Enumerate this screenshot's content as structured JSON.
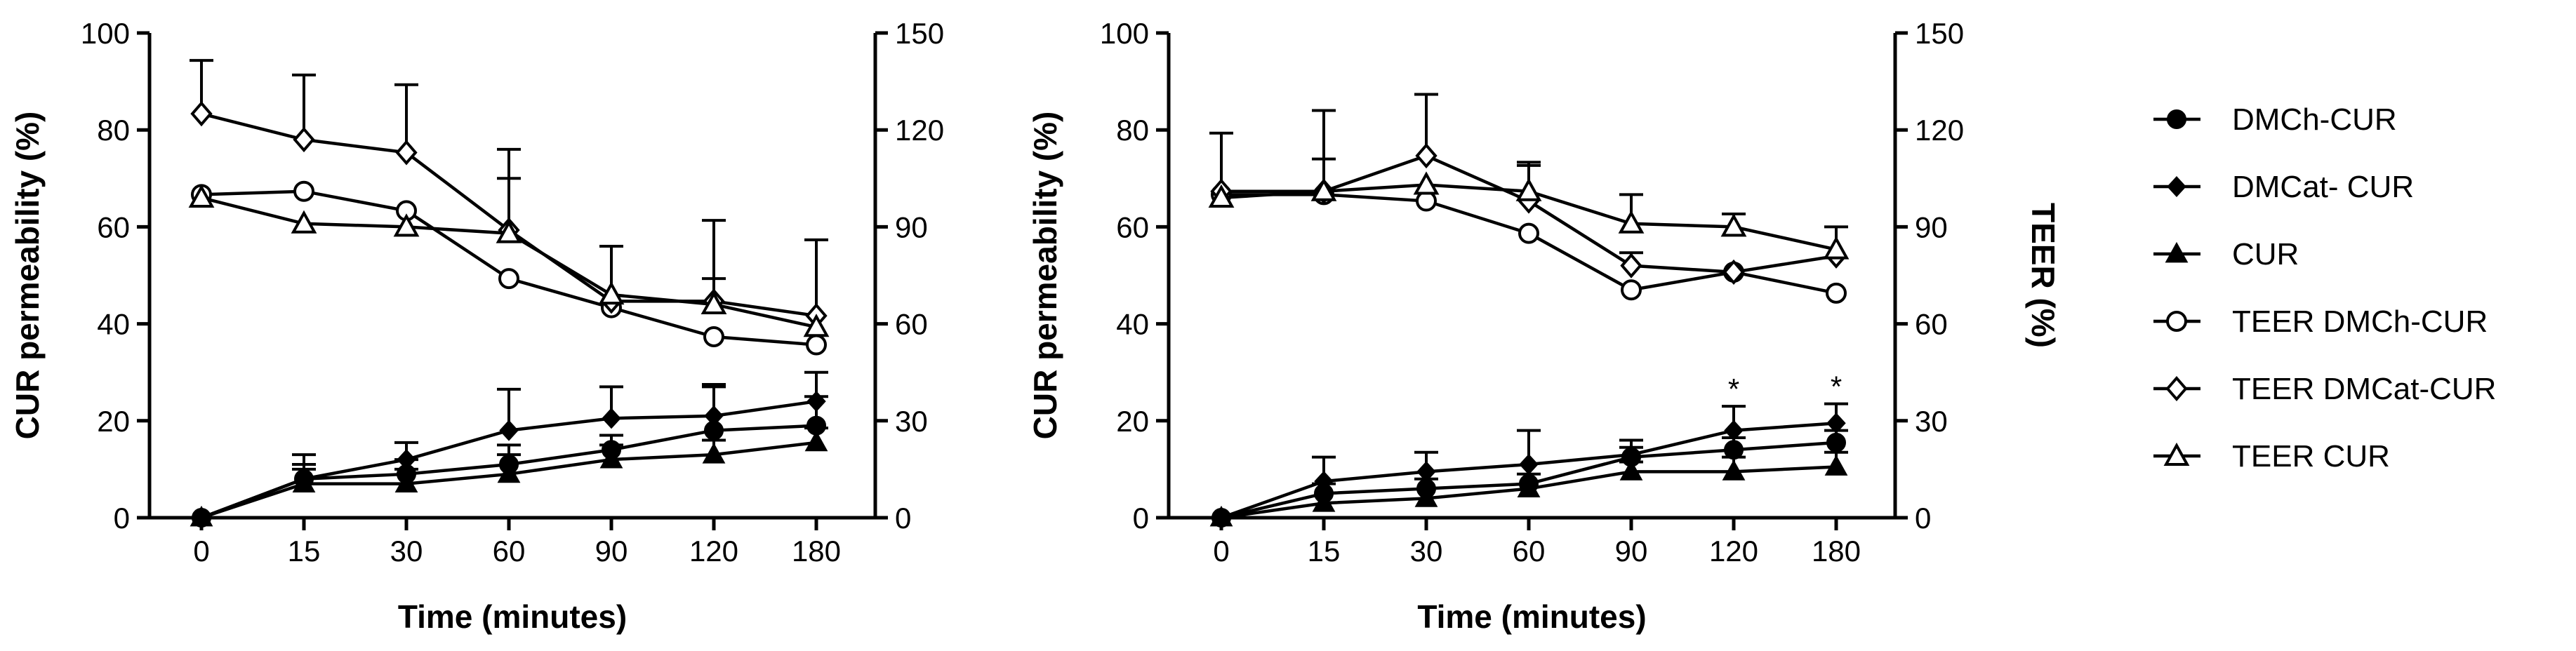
{
  "chart_data": [
    {
      "type": "line",
      "panel": "left",
      "xlabel": "Time (minutes)",
      "ylabel": "CUR permeability (%)",
      "categories": [
        "0",
        "15",
        "30",
        "60",
        "90",
        "120",
        "180"
      ],
      "ylim": [
        0,
        100
      ],
      "yticks": [
        "0",
        "20",
        "40",
        "60",
        "80",
        "100"
      ],
      "y2lim": [
        0,
        150
      ],
      "y2ticks": [
        "0",
        "30",
        "60",
        "90",
        "120",
        "150"
      ],
      "series": [
        {
          "name": "DMCh-CUR",
          "marker": "circle-filled",
          "axis": "left",
          "values": [
            0,
            8,
            9,
            11,
            14,
            18,
            19
          ],
          "err": [
            0,
            3,
            3,
            4,
            3,
            9,
            6
          ]
        },
        {
          "name": "DMCat- CUR",
          "marker": "diamond-filled",
          "axis": "left",
          "values": [
            0,
            8,
            12,
            18,
            20.5,
            21,
            24
          ],
          "err": [
            0,
            5,
            3.5,
            8.5,
            6.5,
            6.5,
            6
          ]
        },
        {
          "name": "CUR",
          "marker": "triangle-filled",
          "axis": "left",
          "values": [
            0,
            7,
            7,
            9,
            12,
            13,
            15.5
          ],
          "err": [
            0,
            3,
            3,
            4,
            3,
            3,
            3
          ]
        },
        {
          "name": "TEER DMCh-CUR",
          "marker": "circle-open",
          "axis": "right",
          "values": [
            100,
            101,
            95,
            74,
            65,
            56,
            53.5
          ],
          "err": [
            0,
            0,
            0,
            0,
            0,
            0,
            0
          ]
        },
        {
          "name": "TEER DMCat-CUR",
          "marker": "diamond-open",
          "axis": "right",
          "values": [
            125,
            117,
            113,
            89,
            67,
            67,
            62.5
          ],
          "err": [
            16.5,
            20,
            21,
            25,
            17,
            25,
            23.5
          ]
        },
        {
          "name": "TEER CUR",
          "marker": "triangle-open",
          "axis": "right",
          "values": [
            99,
            91,
            90,
            88,
            69,
            66,
            59
          ],
          "err": [
            0,
            0,
            0,
            17,
            15,
            8,
            0
          ]
        }
      ],
      "annotations": []
    },
    {
      "type": "line",
      "panel": "right",
      "xlabel": "Time (minutes)",
      "ylabel": "CUR permeability (%)",
      "y2label": "TEER (%)",
      "categories": [
        "0",
        "15",
        "30",
        "60",
        "90",
        "120",
        "180"
      ],
      "ylim": [
        0,
        100
      ],
      "yticks": [
        "0",
        "20",
        "40",
        "60",
        "80",
        "100"
      ],
      "y2lim": [
        0,
        150
      ],
      "y2ticks": [
        "0",
        "30",
        "60",
        "90",
        "120",
        "150"
      ],
      "series": [
        {
          "name": "DMCh-CUR",
          "marker": "circle-filled",
          "axis": "left",
          "values": [
            0,
            5,
            6,
            7,
            12.5,
            14,
            15.5
          ],
          "err": [
            0,
            2,
            2,
            2,
            2,
            2.5,
            2.5
          ]
        },
        {
          "name": "DMCat- CUR",
          "marker": "diamond-filled",
          "axis": "left",
          "values": [
            0,
            7.5,
            9.5,
            11,
            13,
            18,
            19.5
          ],
          "err": [
            0,
            5,
            4,
            7,
            3,
            5,
            4
          ]
        },
        {
          "name": "CUR",
          "marker": "triangle-filled",
          "axis": "left",
          "values": [
            0,
            3,
            4,
            6,
            9.5,
            9.5,
            10.5
          ],
          "err": [
            0,
            0,
            0,
            0,
            2,
            3,
            3
          ]
        },
        {
          "name": "TEER DMCh-CUR",
          "marker": "circle-open",
          "axis": "right",
          "values": [
            100,
            100,
            98,
            88,
            70.5,
            76,
            69.5
          ],
          "err": [
            0,
            0,
            0,
            0,
            0,
            0,
            0
          ]
        },
        {
          "name": "TEER DMCat-CUR",
          "marker": "diamond-open",
          "axis": "right",
          "values": [
            101,
            101,
            112,
            98,
            78,
            76,
            81
          ],
          "err": [
            18,
            25,
            19,
            12,
            4,
            0,
            0
          ]
        },
        {
          "name": "TEER CUR",
          "marker": "triangle-open",
          "axis": "right",
          "values": [
            99,
            101,
            103,
            101,
            91,
            90,
            83
          ],
          "err": [
            0,
            10,
            0,
            8,
            9,
            4,
            7
          ]
        }
      ],
      "annotations": [
        {
          "category": "120",
          "text": "*"
        },
        {
          "category": "180",
          "text": "*"
        }
      ]
    }
  ],
  "legend": {
    "placement": "right",
    "items": [
      {
        "label": "DMCh-CUR",
        "marker": "circle-filled"
      },
      {
        "label": "DMCat- CUR",
        "marker": "diamond-filled"
      },
      {
        "label": "CUR",
        "marker": "triangle-filled"
      },
      {
        "label": "TEER DMCh-CUR",
        "marker": "circle-open"
      },
      {
        "label": "TEER DMCat-CUR",
        "marker": "diamond-open"
      },
      {
        "label": "TEER CUR",
        "marker": "triangle-open"
      }
    ]
  }
}
